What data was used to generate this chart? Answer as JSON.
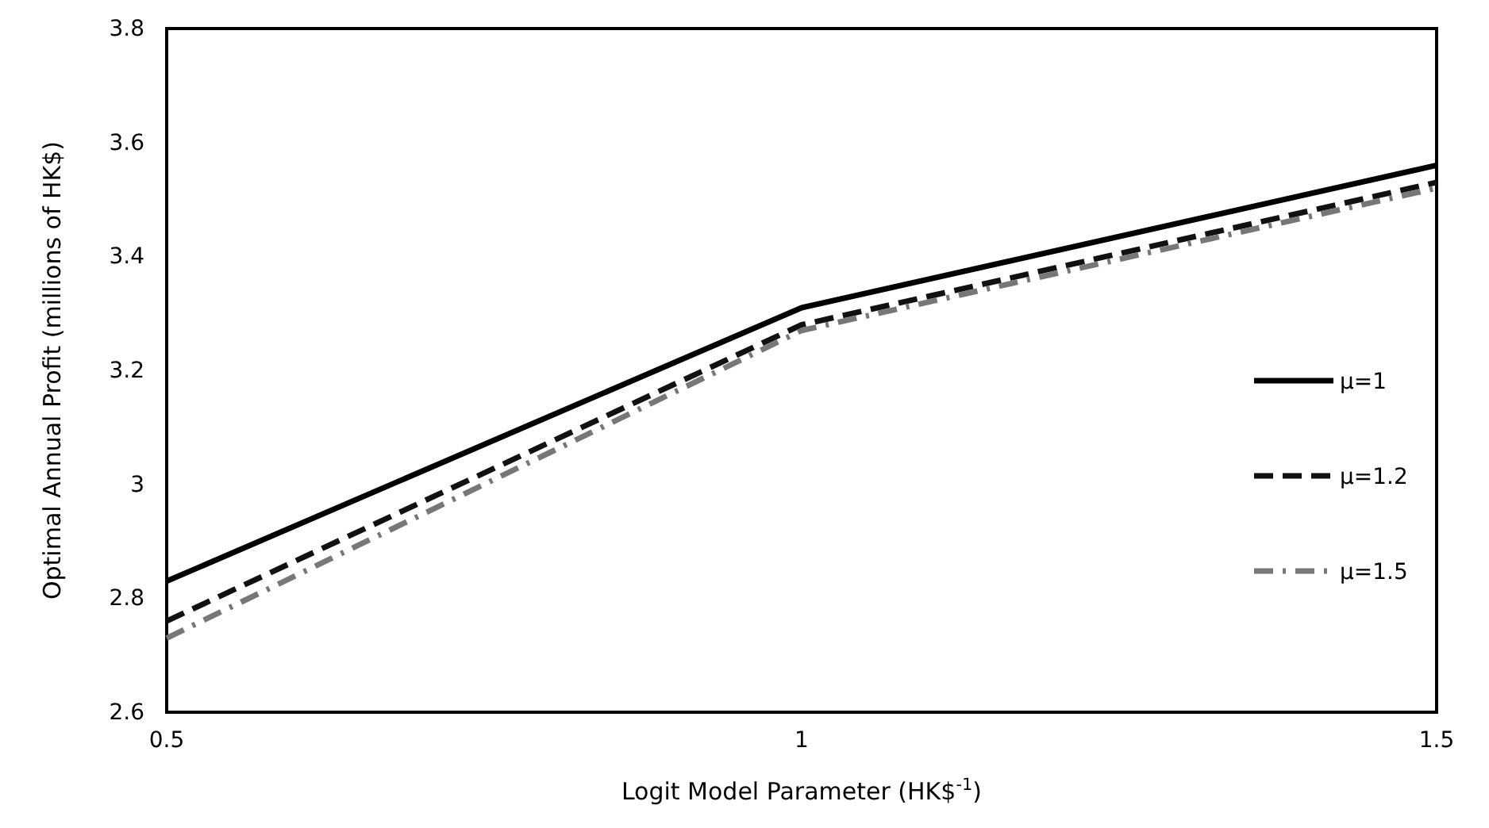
{
  "chart_data": {
    "type": "line",
    "xlabel": "Logit Model Parameter (HK$$^{-1}$)",
    "ylabel": "Optimal Annual Profit (millions of HK$)",
    "x": [
      0.5,
      1,
      1.5
    ],
    "xlim": [
      0.5,
      1.5
    ],
    "xticks": [
      0.5,
      1,
      1.5
    ],
    "ylim": [
      2.6,
      3.8
    ],
    "yticks": [
      2.6,
      2.8,
      3,
      3.2,
      3.4,
      3.6,
      3.8
    ],
    "grid": false,
    "legend": "right",
    "marker": "none",
    "series": [
      {
        "name": "μ=1",
        "color": "#000000",
        "line_style": "solid",
        "values": [
          2.83,
          3.31,
          3.56
        ]
      },
      {
        "name": "μ=1.2",
        "color": "#111111",
        "line_style": "dashed",
        "values": [
          2.76,
          3.28,
          3.53
        ]
      },
      {
        "name": "μ=1.5",
        "color": "#777777",
        "line_style": "dashdot",
        "values": [
          2.73,
          3.27,
          3.52
        ]
      }
    ]
  }
}
